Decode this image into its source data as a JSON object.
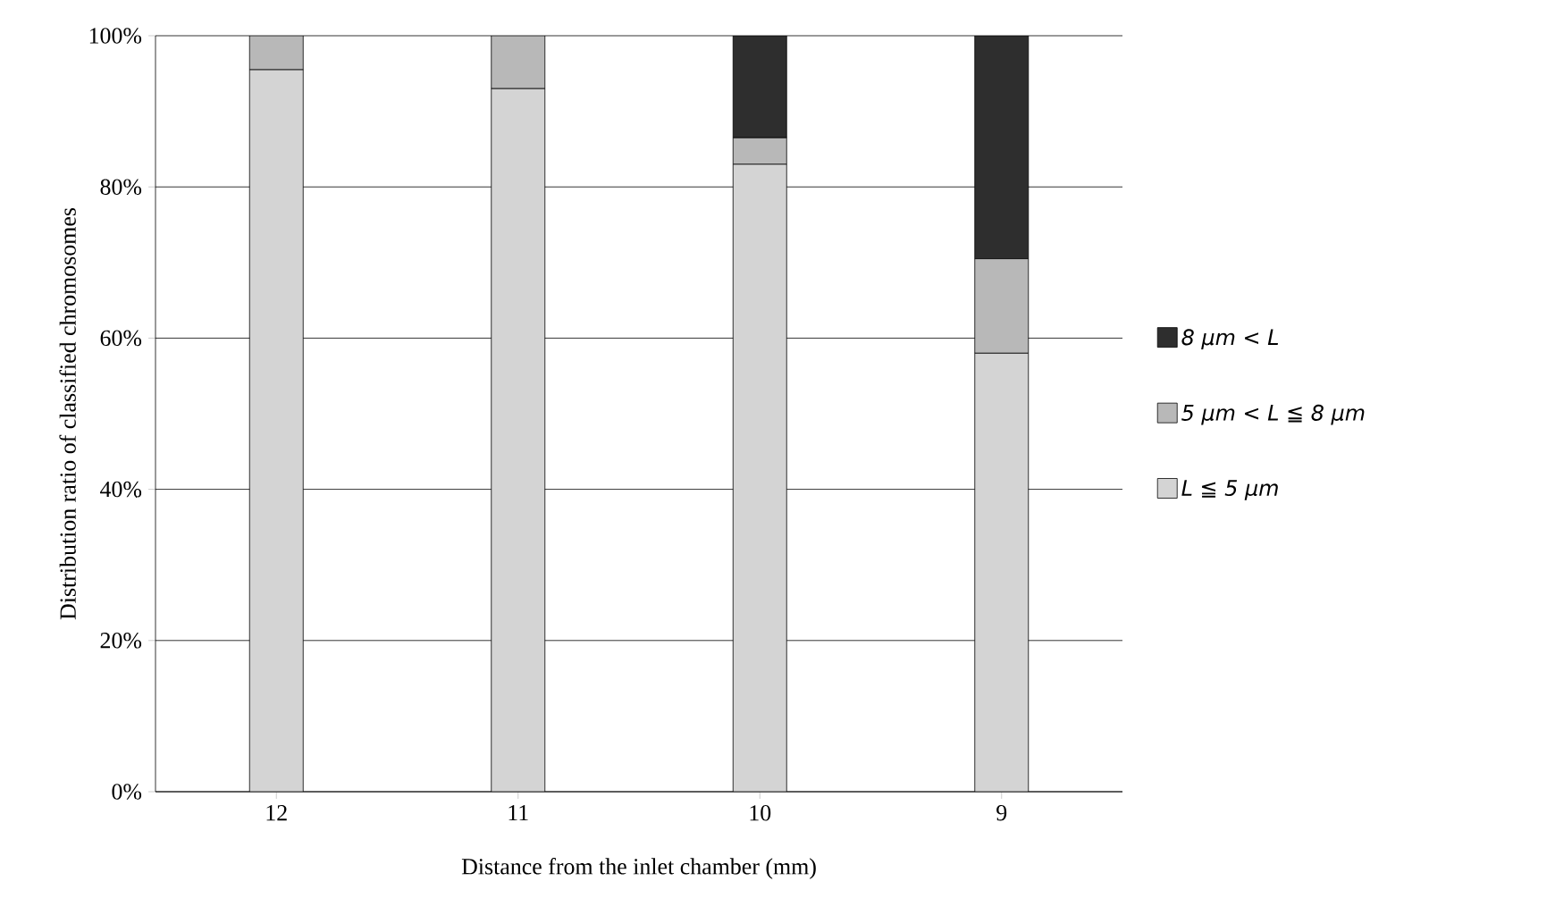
{
  "chart_data": {
    "type": "bar",
    "stacked": true,
    "xlabel": "Distance from the inlet chamber (mm)",
    "ylabel": "Distribution ratio of classified chromosomes",
    "categories": [
      "12",
      "11",
      "10",
      "9"
    ],
    "series": [
      {
        "name": "L ≦ 5 μm",
        "color": "#d4d4d4",
        "values": [
          95.5,
          93,
          83,
          58
        ]
      },
      {
        "name": "5 μm < L ≦ 8 μm",
        "color": "#b8b8b8",
        "values": [
          4.5,
          7,
          3.5,
          12.5
        ]
      },
      {
        "name": "8 μm < L",
        "color": "#2e2e2e",
        "values": [
          0,
          0,
          13.5,
          29.5
        ]
      }
    ],
    "ylim": [
      0,
      100
    ],
    "yticks": [
      {
        "value": 0,
        "label": "0%"
      },
      {
        "value": 20,
        "label": "20%"
      },
      {
        "value": 40,
        "label": "40%"
      },
      {
        "value": 60,
        "label": "60%"
      },
      {
        "value": 80,
        "label": "80%"
      },
      {
        "value": 100,
        "label": "100%"
      }
    ],
    "grid": "y",
    "legend": "right"
  }
}
